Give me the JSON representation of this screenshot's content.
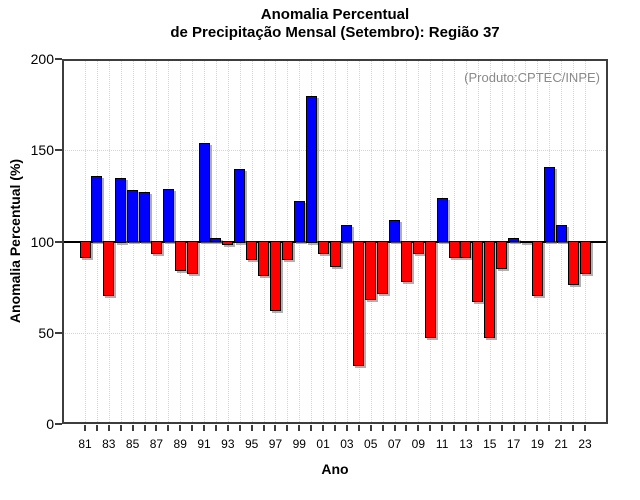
{
  "title": {
    "line1": "Anomalia Percentual",
    "line2": "de Precipitação Mensal (Setembro): Região 37"
  },
  "annotation": {
    "text": "(Produto:CPTEC/INPE)",
    "color": "#8a8a8a"
  },
  "chart_data": {
    "type": "bar",
    "title": "Anomalia Percentual de Precipitação Mensal (Setembro): Região 37",
    "xlabel": "Ano",
    "ylabel": "Anomalia Percentual (%)",
    "ylim": [
      0,
      200
    ],
    "y_ticks": [
      0,
      50,
      100,
      150,
      200
    ],
    "baseline": 100,
    "grid_y_dotted": [
      50,
      150
    ],
    "grid_x_dotted": "every-year-tick",
    "legend": null,
    "color_above_baseline": "#0000ff",
    "color_below_baseline": "#ff0000",
    "x_tick_labels": [
      "81",
      "83",
      "85",
      "87",
      "89",
      "91",
      "93",
      "95",
      "97",
      "99",
      "01",
      "03",
      "05",
      "07",
      "09",
      "11",
      "13",
      "15",
      "17",
      "19",
      "21",
      "23"
    ],
    "categories": [
      "81",
      "82",
      "83",
      "84",
      "85",
      "86",
      "87",
      "88",
      "89",
      "90",
      "91",
      "92",
      "93",
      "94",
      "95",
      "96",
      "97",
      "98",
      "99",
      "00",
      "01",
      "02",
      "03",
      "04",
      "05",
      "06",
      "07",
      "08",
      "09",
      "10",
      "11",
      "12",
      "13",
      "14",
      "15",
      "16",
      "17",
      "18",
      "19",
      "20",
      "21",
      "22",
      "23"
    ],
    "values": [
      91,
      136,
      70,
      135,
      128,
      127,
      93,
      129,
      84,
      82,
      154,
      102,
      98,
      140,
      90,
      81,
      62,
      90,
      122,
      180,
      93,
      86,
      109,
      32,
      68,
      71,
      112,
      78,
      93,
      47,
      124,
      91,
      91,
      67,
      47,
      85,
      102,
      100.5,
      70,
      141,
      109,
      76,
      82
    ]
  }
}
